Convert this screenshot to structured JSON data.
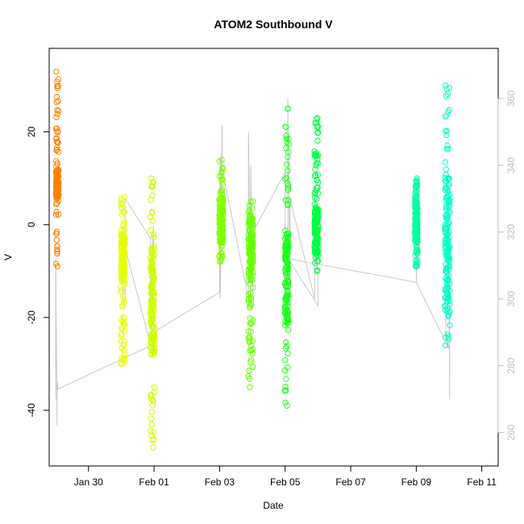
{
  "chart_data": {
    "type": "scatter",
    "title": "ATOM2 Southbound V",
    "xlabel": "Date",
    "ylabel": "V",
    "x_ticks": [
      "Jan 30",
      "Feb 01",
      "Feb 03",
      "Feb 05",
      "Feb 07",
      "Feb 09",
      "Feb 11"
    ],
    "x_tick_days": [
      1,
      3,
      5,
      7,
      9,
      11,
      13
    ],
    "xlim_days": [
      -0.2,
      13.5
    ],
    "ylim": [
      -52,
      38
    ],
    "y_ticks": [
      -40,
      -20,
      0,
      20
    ],
    "y_tick_labels": [
      "-40",
      "-20",
      "0",
      "20"
    ],
    "right_axis": {
      "ylim": [
        250,
        375
      ],
      "ticks": [
        260,
        280,
        300,
        320,
        340,
        360
      ],
      "tick_labels": [
        "260",
        "280",
        "300",
        "320",
        "340",
        "360"
      ],
      "color": "#bdbdbd"
    },
    "grid": false,
    "legend": "none",
    "clusters": [
      {
        "day": 0.05,
        "width": 0.08,
        "ymin": -9,
        "ymax": 33,
        "dense_min": 6,
        "dense_max": 12,
        "color": "#ff8000"
      },
      {
        "day": 2.05,
        "width": 0.12,
        "ymin": -30,
        "ymax": 6,
        "dense_min": -12,
        "dense_max": -2,
        "color": "#e6ff00"
      },
      {
        "day": 2.95,
        "width": 0.12,
        "ymin": -48,
        "ymax": 10,
        "dense_min": -28,
        "dense_max": -5,
        "color": "#ccff00"
      },
      {
        "day": 5.05,
        "width": 0.12,
        "ymin": -8,
        "ymax": 14,
        "dense_min": -4,
        "dense_max": 6,
        "color": "#80ff00"
      },
      {
        "day": 5.95,
        "width": 0.15,
        "ymin": -35,
        "ymax": 5,
        "dense_min": -12,
        "dense_max": 2,
        "color": "#66ff00"
      },
      {
        "day": 7.05,
        "width": 0.12,
        "ymin": -39,
        "ymax": 25,
        "dense_min": -22,
        "dense_max": -2,
        "color": "#1aff1a"
      },
      {
        "day": 7.95,
        "width": 0.12,
        "ymin": -10,
        "ymax": 23,
        "dense_min": -6,
        "dense_max": 4,
        "color": "#00ff40"
      },
      {
        "day": 11.0,
        "width": 0.08,
        "ymin": -9,
        "ymax": 10,
        "dense_min": -4,
        "dense_max": 6,
        "color": "#00ffa0"
      },
      {
        "day": 11.95,
        "width": 0.15,
        "ymin": -26,
        "ymax": 30,
        "dense_min": -20,
        "dense_max": 10,
        "color": "#00ffc8"
      }
    ],
    "heading_series": {
      "name": "",
      "axis": "right",
      "color": "#c8c8c8",
      "x_days": [
        0.0,
        0.0,
        0.04,
        0.04,
        0.06,
        0.06,
        2.9,
        2.05,
        2.05,
        2.12,
        2.12,
        2.9,
        2.9,
        2.98,
        2.98,
        5.0,
        5.0,
        5.08,
        5.08,
        5.02,
        5.02,
        5.88,
        5.88,
        5.95,
        5.95,
        6.02,
        6.02,
        7.0,
        7.0,
        7.08,
        7.08,
        7.15,
        7.15,
        7.9,
        7.9,
        8.0,
        8.0,
        7.1,
        11.0,
        11.0,
        11.02,
        11.0,
        12.0,
        11.9,
        11.9,
        11.98,
        11.98,
        12.02,
        12.02
      ],
      "y": [
        270,
        312,
        262,
        272,
        275,
        273,
        286,
        318,
        298,
        300,
        330,
        318,
        300,
        322,
        290,
        302,
        318,
        352,
        340,
        300,
        342,
        300,
        350,
        300,
        340,
        302,
        320,
        338,
        318,
        310,
        360,
        300,
        330,
        300,
        330,
        306,
        298,
        312,
        305,
        310,
        312,
        305,
        285,
        290,
        305,
        300,
        332,
        270,
        302
      ]
    }
  }
}
